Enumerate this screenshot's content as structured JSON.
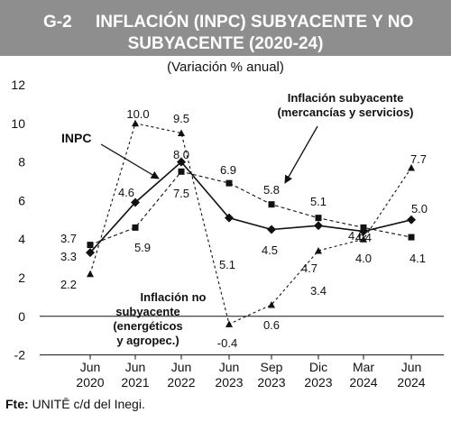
{
  "header": {
    "number": "G-2",
    "title_line1": "INFLACIÓN (INPC) SUBYACENTE Y NO",
    "title_line2": "SUBYACENTE (2020-24)",
    "subtitle": "(Variación % anual)"
  },
  "footer": {
    "source_label": "Fte:",
    "source_text": "UNITĒ c/d del Inegi."
  },
  "chart_data": {
    "type": "line",
    "categories": [
      [
        "Jun",
        "2020"
      ],
      [
        "Jun",
        "2021"
      ],
      [
        "Jun",
        "2022"
      ],
      [
        "Jun",
        "2023"
      ],
      [
        "Sep",
        "2023"
      ],
      [
        "Dic",
        "2023"
      ],
      [
        "Mar",
        "2024"
      ],
      [
        "Jun",
        "2024"
      ]
    ],
    "ylim": [
      -2,
      12
    ],
    "yticks": [
      -2,
      0,
      2,
      4,
      6,
      8,
      10,
      12
    ],
    "grid": false,
    "series": [
      {
        "name": "INPC",
        "values": [
          3.3,
          5.9,
          8.0,
          5.1,
          4.5,
          4.7,
          4.4,
          5.0
        ],
        "labels": [
          "3.3",
          "",
          "8.0",
          "5.1",
          "4.5",
          "4.7",
          "4.4",
          "5.0"
        ],
        "marker": "diamond",
        "line": "solid"
      },
      {
        "name": "Inflación subyacente (mercancías y servicios)",
        "values": [
          3.7,
          4.6,
          7.5,
          6.9,
          5.8,
          5.1,
          4.6,
          4.1
        ],
        "labels": [
          "3.7",
          "4.6",
          "7.5",
          "6.9",
          "5.8",
          "5.1",
          "4.6",
          "4.1"
        ],
        "marker": "square",
        "line": "dashed"
      },
      {
        "name": "Inflación no subyacente (energéticos y agropec.)",
        "values": [
          2.2,
          10.0,
          9.5,
          -0.4,
          0.6,
          3.4,
          4.0,
          7.7
        ],
        "labels": [
          "2.2",
          "10.0",
          "9.5",
          "-0.4",
          "0.6",
          "3.4",
          "4.0",
          "7.7"
        ],
        "marker": "triangle",
        "line": "dotted"
      }
    ],
    "extra_labels": [
      "5.9"
    ],
    "annotations": {
      "inpc": "INPC",
      "sub_line1": "Inflación subyacente",
      "sub_line2": "(mercancías y servicios)",
      "nosub_line1": "Inflación no",
      "nosub_line2": "subyacente",
      "nosub_line3": "(energéticos",
      "nosub_line4": "y agropec.)"
    }
  }
}
